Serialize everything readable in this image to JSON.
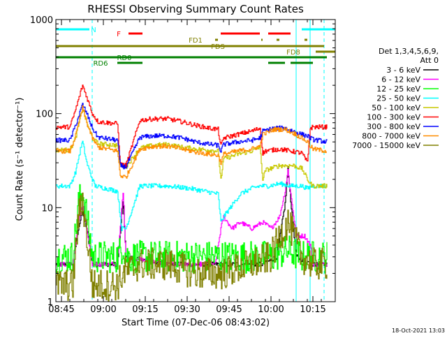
{
  "chart_data": {
    "type": "line",
    "title": "RHESSI Observing Summary Count Rates",
    "xlabel": "Start Time (07-Dec-06 08:43:02)",
    "ylabel": "Count Rate (s⁻¹ detector⁻¹)",
    "y_scale": "log",
    "ylim": [
      1,
      1000
    ],
    "xlim_minutes": [
      0,
      100
    ],
    "x_ticks": [
      {
        "label": "08:45",
        "min": 2
      },
      {
        "label": "09:00",
        "min": 17
      },
      {
        "label": "09:15",
        "min": 32
      },
      {
        "label": "09:30",
        "min": 47
      },
      {
        "label": "09:45",
        "min": 62
      },
      {
        "label": "10:00",
        "min": 77
      },
      {
        "label": "10:15",
        "min": 92
      }
    ],
    "y_ticks": [
      {
        "label": "1",
        "value": 1
      },
      {
        "label": "10",
        "value": 10
      },
      {
        "label": "100",
        "value": 100
      },
      {
        "label": "1000",
        "value": 1000
      }
    ],
    "legend": {
      "header": [
        "Det 1,3,4,5,6,9,",
        "Att 0"
      ],
      "position": "right"
    },
    "series": [
      {
        "name": "3 - 6 keV",
        "color": "#000000",
        "points": [
          [
            0,
            2.5
          ],
          [
            6,
            2.5
          ],
          [
            8,
            6
          ],
          [
            9.5,
            9
          ],
          [
            11,
            6
          ],
          [
            13,
            2.5
          ],
          [
            22,
            2.5
          ],
          [
            24,
            12
          ],
          [
            25,
            3
          ],
          [
            40,
            2.5
          ],
          [
            50,
            2.5
          ],
          [
            58,
            2.5
          ],
          [
            66,
            2.5
          ],
          [
            74,
            2.5
          ],
          [
            79,
            3
          ],
          [
            82,
            11
          ],
          [
            83,
            26
          ],
          [
            84,
            12
          ],
          [
            86,
            3
          ],
          [
            92,
            2.5
          ],
          [
            97,
            2.5
          ]
        ]
      },
      {
        "name": "6 - 12 keV",
        "color": "#ff00ff",
        "points": [
          [
            0,
            2.5
          ],
          [
            6,
            2.5
          ],
          [
            8,
            7
          ],
          [
            9.5,
            11
          ],
          [
            11,
            6
          ],
          [
            13,
            2.5
          ],
          [
            22,
            2.5
          ],
          [
            24,
            15
          ],
          [
            25,
            3
          ],
          [
            40,
            2.5
          ],
          [
            57,
            2.5
          ],
          [
            59,
            6
          ],
          [
            60,
            8
          ],
          [
            63,
            6
          ],
          [
            66,
            7
          ],
          [
            70,
            6
          ],
          [
            74,
            7
          ],
          [
            77,
            6
          ],
          [
            80,
            8
          ],
          [
            82,
            15
          ],
          [
            83,
            25
          ],
          [
            84,
            14
          ],
          [
            86,
            5
          ],
          [
            89,
            5
          ],
          [
            91,
            4
          ],
          [
            92,
            2.5
          ],
          [
            97,
            2.5
          ]
        ]
      },
      {
        "name": "12 - 25 keV",
        "color": "#00ff00",
        "points": [
          [
            0,
            3
          ],
          [
            6,
            3
          ],
          [
            8,
            11
          ],
          [
            9.5,
            15
          ],
          [
            11,
            8
          ],
          [
            13,
            3
          ],
          [
            22,
            3
          ],
          [
            24,
            4
          ],
          [
            25,
            3
          ],
          [
            60,
            3
          ],
          [
            77,
            3
          ],
          [
            83,
            3.5
          ],
          [
            88,
            3
          ],
          [
            97,
            3
          ]
        ]
      },
      {
        "name": "25 - 50 keV",
        "color": "#00ffff",
        "points": [
          [
            0,
            17
          ],
          [
            5,
            17
          ],
          [
            7,
            24
          ],
          [
            9,
            45
          ],
          [
            9.5,
            50
          ],
          [
            11,
            30
          ],
          [
            13,
            20
          ],
          [
            14,
            17
          ],
          [
            22,
            15
          ],
          [
            23,
            8
          ],
          [
            23.5,
            6
          ],
          [
            25,
            6
          ],
          [
            30,
            17
          ],
          [
            40,
            17
          ],
          [
            48,
            16
          ],
          [
            53,
            15
          ],
          [
            58,
            14
          ],
          [
            59,
            7
          ],
          [
            60,
            8
          ],
          [
            66,
            14
          ],
          [
            70,
            16
          ],
          [
            73,
            17
          ],
          [
            76,
            17
          ],
          [
            80,
            18
          ],
          [
            84,
            17
          ],
          [
            88,
            17
          ],
          [
            90,
            16
          ],
          [
            92,
            17
          ],
          [
            97,
            17
          ]
        ]
      },
      {
        "name": "50 - 100 keV",
        "color": "#c8c800",
        "points": [
          [
            0,
            41
          ],
          [
            5,
            41
          ],
          [
            7,
            55
          ],
          [
            9.5,
            115
          ],
          [
            11,
            80
          ],
          [
            13,
            55
          ],
          [
            15,
            48
          ],
          [
            22,
            46
          ],
          [
            23,
            28
          ],
          [
            25,
            27
          ],
          [
            30,
            43
          ],
          [
            35,
            46
          ],
          [
            40,
            47
          ],
          [
            45,
            44
          ],
          [
            50,
            42
          ],
          [
            55,
            41
          ],
          [
            58,
            40
          ],
          [
            59,
            20
          ],
          [
            60,
            33
          ],
          [
            65,
            37
          ],
          [
            70,
            40
          ],
          [
            73,
            44
          ],
          [
            74,
            20
          ],
          [
            75,
            25
          ],
          [
            80,
            28
          ],
          [
            85,
            28
          ],
          [
            88,
            26
          ],
          [
            90,
            20
          ],
          [
            91,
            18
          ],
          [
            92,
            17
          ],
          [
            97,
            17
          ]
        ]
      },
      {
        "name": "100 - 300 keV",
        "color": "#ff0000",
        "points": [
          [
            0,
            72
          ],
          [
            5,
            72
          ],
          [
            7,
            110
          ],
          [
            9.5,
            200
          ],
          [
            11,
            150
          ],
          [
            13,
            100
          ],
          [
            15,
            82
          ],
          [
            22,
            78
          ],
          [
            23,
            29
          ],
          [
            25,
            28
          ],
          [
            30,
            85
          ],
          [
            35,
            88
          ],
          [
            40,
            88
          ],
          [
            45,
            82
          ],
          [
            50,
            75
          ],
          [
            55,
            70
          ],
          [
            58,
            68
          ],
          [
            59,
            45
          ],
          [
            60,
            55
          ],
          [
            65,
            60
          ],
          [
            70,
            65
          ],
          [
            73,
            70
          ],
          [
            74,
            38
          ],
          [
            75,
            40
          ],
          [
            80,
            42
          ],
          [
            84,
            40
          ],
          [
            88,
            38
          ],
          [
            90,
            30
          ],
          [
            91,
            70
          ],
          [
            92,
            72
          ],
          [
            97,
            72
          ]
        ]
      },
      {
        "name": "300 - 800 keV",
        "color": "#0000ff",
        "points": [
          [
            0,
            52
          ],
          [
            5,
            52
          ],
          [
            7,
            75
          ],
          [
            9.5,
            125
          ],
          [
            11,
            100
          ],
          [
            13,
            70
          ],
          [
            15,
            56
          ],
          [
            22,
            52
          ],
          [
            23,
            28
          ],
          [
            25,
            27
          ],
          [
            30,
            56
          ],
          [
            35,
            58
          ],
          [
            40,
            58
          ],
          [
            45,
            55
          ],
          [
            50,
            50
          ],
          [
            55,
            47
          ],
          [
            58,
            46
          ],
          [
            59,
            40
          ],
          [
            60,
            47
          ],
          [
            65,
            50
          ],
          [
            70,
            52
          ],
          [
            73,
            55
          ],
          [
            74,
            65
          ],
          [
            78,
            70
          ],
          [
            82,
            70
          ],
          [
            85,
            65
          ],
          [
            88,
            60
          ],
          [
            90,
            58
          ],
          [
            91,
            55
          ],
          [
            92,
            53
          ],
          [
            97,
            50
          ]
        ]
      },
      {
        "name": "800 - 7000 keV",
        "color": "#ff8c00",
        "points": [
          [
            0,
            40
          ],
          [
            5,
            40
          ],
          [
            7,
            58
          ],
          [
            9.5,
            115
          ],
          [
            11,
            80
          ],
          [
            13,
            55
          ],
          [
            15,
            44
          ],
          [
            22,
            40
          ],
          [
            23,
            22
          ],
          [
            25,
            21
          ],
          [
            30,
            42
          ],
          [
            35,
            45
          ],
          [
            40,
            45
          ],
          [
            45,
            42
          ],
          [
            50,
            39
          ],
          [
            55,
            37
          ],
          [
            58,
            36
          ],
          [
            59,
            30
          ],
          [
            60,
            37
          ],
          [
            65,
            40
          ],
          [
            70,
            42
          ],
          [
            73,
            45
          ],
          [
            74,
            60
          ],
          [
            78,
            68
          ],
          [
            82,
            68
          ],
          [
            85,
            62
          ],
          [
            88,
            55
          ],
          [
            90,
            50
          ],
          [
            91,
            45
          ],
          [
            92,
            42
          ],
          [
            97,
            40
          ]
        ]
      },
      {
        "name": "7000 - 15000 keV",
        "color": "#808000",
        "points": [
          [
            0,
            1.5
          ],
          [
            6,
            1.5
          ],
          [
            8,
            8
          ],
          [
            9.5,
            12
          ],
          [
            11,
            5
          ],
          [
            13,
            1.5
          ],
          [
            22,
            1.5
          ],
          [
            24,
            2
          ],
          [
            30,
            2.5
          ],
          [
            40,
            2.5
          ],
          [
            50,
            2
          ],
          [
            60,
            2
          ],
          [
            70,
            2.5
          ],
          [
            77,
            3
          ],
          [
            80,
            5
          ],
          [
            83,
            7
          ],
          [
            85,
            5
          ],
          [
            88,
            3
          ],
          [
            92,
            2.5
          ],
          [
            97,
            2.5
          ]
        ]
      }
    ],
    "flag_bars": [
      {
        "label": "N",
        "color": "#00ffff",
        "y": 42,
        "segments": [
          [
            0,
            12
          ]
        ],
        "right_segments": [
          [
            88,
            100
          ]
        ],
        "label_min": 13.5
      },
      {
        "label": "F",
        "color": "#ff0000",
        "y": 48,
        "segments": [
          [
            26,
            31
          ],
          [
            59,
            73
          ],
          [
            76,
            84
          ]
        ],
        "label_min": 22.5
      },
      {
        "label": "FD1",
        "color": "#808000",
        "y": 57,
        "segments": [
          [
            57,
            58
          ],
          [
            73.5,
            74
          ],
          [
            79,
            80
          ],
          [
            89,
            90
          ]
        ],
        "label_min": 50
      },
      {
        "label": "FDS",
        "color": "#808000",
        "y": 66,
        "segments": [
          [
            0,
            96
          ]
        ],
        "label_min": 58
      },
      {
        "label": "FD8",
        "color": "#808000",
        "y": 74,
        "segments": [
          [
            93,
            100
          ]
        ],
        "label_min": 85
      },
      {
        "label": "RD0",
        "color": "#008000",
        "y": 82,
        "segments": [
          [
            0,
            97
          ]
        ],
        "label_min": 24.5
      },
      {
        "label": "RD6",
        "color": "#008000",
        "y": 90,
        "segments": [
          [
            22,
            31
          ],
          [
            76,
            82
          ],
          [
            84,
            92
          ]
        ],
        "label_min": 16
      }
    ],
    "vertical_markers_min": [
      13,
      86,
      91,
      96
    ],
    "timestamp": "18-Oct-2021 13:03"
  }
}
